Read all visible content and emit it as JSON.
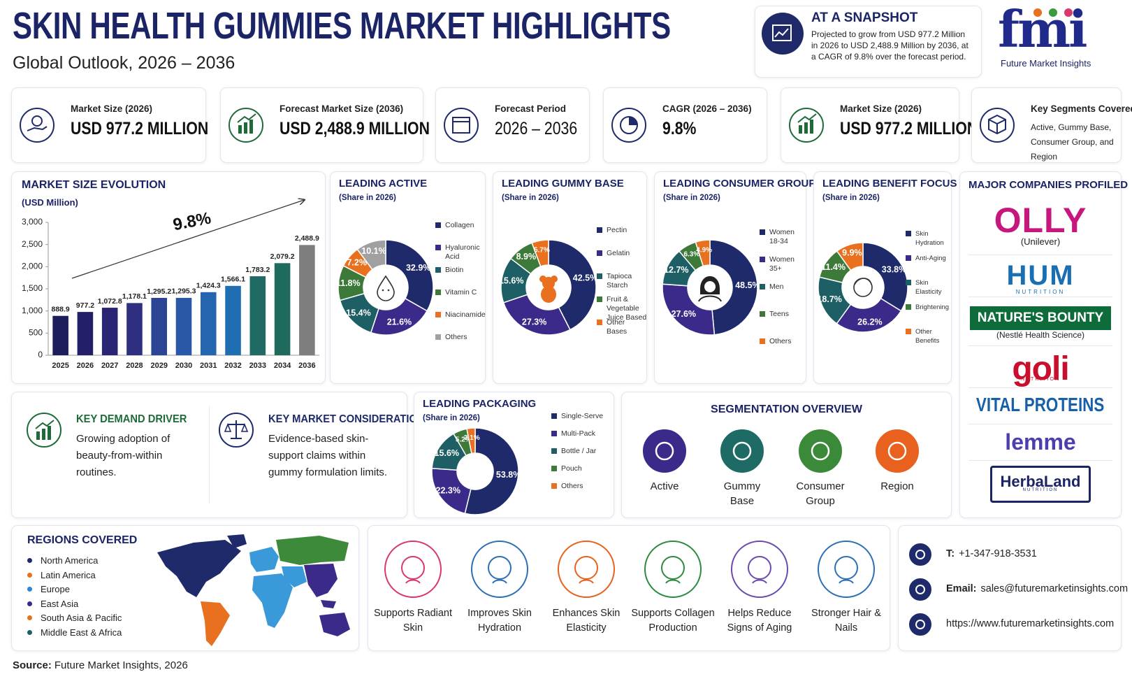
{
  "header": {
    "title": "SKIN HEALTH GUMMIES MARKET HIGHLIGHTS",
    "subtitle": "Global Outlook, 2026 – 2036"
  },
  "snapshot": {
    "title": "AT A SNAPSHOT",
    "text": "Projected to grow from USD 977.2 Million in 2026 to USD 2,488.9 Million by 2036, at a CAGR of 9.8% over the forecast period."
  },
  "logo": {
    "mark": "fmi",
    "name": "Future Market Insights"
  },
  "kpis": [
    {
      "label": "Market Size (2026)",
      "value": "USD 977.2 MILLION"
    },
    {
      "label": "Forecast Market Size (2036)",
      "value": "USD 2,488.9 MILLION"
    },
    {
      "label": "Forecast Period",
      "value": "2026 – 2036"
    },
    {
      "label": "CAGR (2026 – 2036)",
      "value": "9.8%"
    },
    {
      "label": "Market Size (2026)",
      "value": "USD 977.2 MILLION"
    },
    {
      "label": "Key Segments Covered",
      "value": "Active, Gummy Base, Consumer Group, and Region"
    }
  ],
  "chart_data": [
    {
      "type": "bar",
      "title": "MARKET SIZE EVOLUTION",
      "subtitle": "(USD Million)",
      "annotation": "9.8%",
      "categories": [
        "2025",
        "2026",
        "2027",
        "2028",
        "2029",
        "2030",
        "2031",
        "2032",
        "2033",
        "2034",
        "2036"
      ],
      "values": [
        888.9,
        977.2,
        1072.8,
        1178.1,
        1295.2,
        1295.3,
        1424.3,
        1566.1,
        1783.2,
        2079.2,
        2488.9
      ],
      "value_labels": [
        "888.9",
        "977.2",
        "1,072.8",
        "1,178.1",
        "1,295.2",
        "1,295.3",
        "1,424.3",
        "1,566.1",
        "1,783.2",
        "2,079.2",
        "2,488.9"
      ],
      "colors": [
        "#1c1d5a",
        "#221f68",
        "#2a2474",
        "#2e2f80",
        "#2c4494",
        "#2a57a6",
        "#2565b0",
        "#1f6db3",
        "#1f6a63",
        "#1e6a5c",
        "#7e7e7e"
      ],
      "ylim": [
        0,
        3000
      ],
      "yticks": [
        0,
        500,
        {
          "value": 1000,
          "label": "1,000"
        },
        {
          "value": 1500,
          "label": "1,500"
        },
        {
          "value": 2000,
          "label": "2,000"
        },
        {
          "value": 2500,
          "label": "2,500"
        },
        {
          "value": 3000,
          "label": "3,000"
        }
      ],
      "grid": false
    },
    {
      "type": "pie",
      "title": "LEADING ACTIVE",
      "subtitle": "(Share in 2026)",
      "categories": [
        "Collagen",
        "Hyaluronic Acid",
        "Biotin",
        "Vitamin C",
        "Niacinamide",
        "Others"
      ],
      "values": [
        32.9,
        21.6,
        15.4,
        11.8,
        7.2,
        10.1
      ],
      "value_labels": [
        "32.9%",
        "21.6%",
        "15.4%",
        "11.8%",
        "7.2%",
        "10.1%"
      ],
      "colors": [
        "#1f2a6b",
        "#3b2a8a",
        "#1e5f66",
        "#3d7a3a",
        "#e8701e",
        "#a0a0a0"
      ]
    },
    {
      "type": "pie",
      "title": "LEADING GUMMY BASE",
      "subtitle": "(Share in 2026)",
      "categories": [
        "Pectin",
        "Gelatin",
        "Tapioca Starch",
        "Fruit & Vegetable Juice Based",
        "Other Bases"
      ],
      "values": [
        42.5,
        27.3,
        15.6,
        8.9,
        5.7
      ],
      "value_labels": [
        "42.5%",
        "27.3%",
        "15.6%",
        "8.9%",
        "5.7%"
      ],
      "colors": [
        "#1f2a6b",
        "#3b2a8a",
        "#1e5f66",
        "#3d7a3a",
        "#e8701e"
      ]
    },
    {
      "type": "pie",
      "title": "LEADING CONSUMER GROUP",
      "subtitle": "(Share in 2026)",
      "categories": [
        "Women 18-34",
        "Women 35+",
        "Men",
        "Teens",
        "Others"
      ],
      "values": [
        48.5,
        27.6,
        12.7,
        6.3,
        4.9
      ],
      "value_labels": [
        "48.5%",
        "27.6%",
        "12.7%",
        "6.3%",
        "4.9%"
      ],
      "colors": [
        "#1f2a6b",
        "#3b2a8a",
        "#1e5f66",
        "#3d7a3a",
        "#e8701e"
      ]
    },
    {
      "type": "pie",
      "title": "LEADING BENEFIT FOCUS",
      "subtitle": "(Share in 2026)",
      "categories": [
        "Skin Hydration",
        "Anti-Aging",
        "Skin Elasticity",
        "Brightening",
        "Other Benefits"
      ],
      "values": [
        33.8,
        26.2,
        18.7,
        11.4,
        9.9
      ],
      "value_labels": [
        "33.8%",
        "26.2%",
        "18.7%",
        "11.4%",
        "9.9%"
      ],
      "colors": [
        "#1f2a6b",
        "#3b2a8a",
        "#1e5f66",
        "#3d7a3a",
        "#e8701e"
      ]
    },
    {
      "type": "pie",
      "title": "LEADING PACKAGING",
      "subtitle": "(Share in 2026)",
      "categories": [
        "Single-Serve",
        "Multi-Pack",
        "Bottle / Jar",
        "Pouch",
        "Others"
      ],
      "values": [
        53.8,
        22.3,
        15.6,
        5.2,
        3.1
      ],
      "value_labels": [
        "53.8%",
        "22.3%",
        "15.6%",
        "5.2%",
        "3.1%"
      ],
      "colors": [
        "#1f2a6b",
        "#3b2a8a",
        "#1e5f66",
        "#3d7a3a",
        "#e8701e"
      ]
    }
  ],
  "drivers": [
    {
      "title": "KEY DEMAND DRIVER",
      "text": "Growing adoption of beauty-from-within routines.",
      "color": "#1e6b3a"
    },
    {
      "title": "KEY MARKET CONSIDERATION",
      "text": "Evidence-based skin-support claims within gummy formulation limits.",
      "color": "#1f2a6b"
    }
  ],
  "segmentation": {
    "title": "SEGMENTATION OVERVIEW",
    "items": [
      {
        "label": "Active",
        "color": "#3b2a8a"
      },
      {
        "label": "Gummy Base",
        "color": "#1e6b66"
      },
      {
        "label": "Consumer Group",
        "color": "#3b8a3a"
      },
      {
        "label": "Region",
        "color": "#e8611e"
      }
    ]
  },
  "companies": {
    "title": "MAJOR COMPANIES PROFILED",
    "items": [
      {
        "name": "OLLY",
        "note": "(Unilever)"
      },
      {
        "name": "HUM",
        "note": "NUTRITION"
      },
      {
        "name": "NATURE'S BOUNTY",
        "note": "(Nestlé Health Science)"
      },
      {
        "name": "goli",
        "note": "NUTRITION"
      },
      {
        "name": "VITAL PROTEINS"
      },
      {
        "name": "lemme"
      },
      {
        "name": "HerbaLand",
        "note": "NUTRITION"
      }
    ]
  },
  "regions": {
    "title": "REGIONS COVERED",
    "items": [
      {
        "name": "North America",
        "color": "#1f2a6b"
      },
      {
        "name": "Latin America",
        "color": "#e8701e"
      },
      {
        "name": "Europe",
        "color": "#2a86d1"
      },
      {
        "name": "East Asia",
        "color": "#3b2a8a"
      },
      {
        "name": "South Asia & Pacific",
        "color": "#e8701e"
      },
      {
        "name": "Middle East & Africa",
        "color": "#1e5f66"
      }
    ]
  },
  "benefits": [
    {
      "label": "Supports Radiant Skin",
      "color": "#d9386a"
    },
    {
      "label": "Improves Skin Hydration",
      "color": "#2d6fb5"
    },
    {
      "label": "Enhances Skin Elasticity",
      "color": "#e8611e"
    },
    {
      "label": "Supports Collagen Production",
      "color": "#2d8a3e"
    },
    {
      "label": "Helps Reduce Signs of Aging",
      "color": "#6a4bb0"
    },
    {
      "label": "Stronger Hair & Nails",
      "color": "#2d6fb5"
    }
  ],
  "contact": {
    "phone_label": "T:",
    "phone": "+1-347-918-3531",
    "email_label": "Email:",
    "email": "sales@futuremarketinsights.com",
    "web": "https://www.futuremarketinsights.com"
  },
  "source": {
    "label": "Source:",
    "text": "Future Market Insights, 2026"
  }
}
